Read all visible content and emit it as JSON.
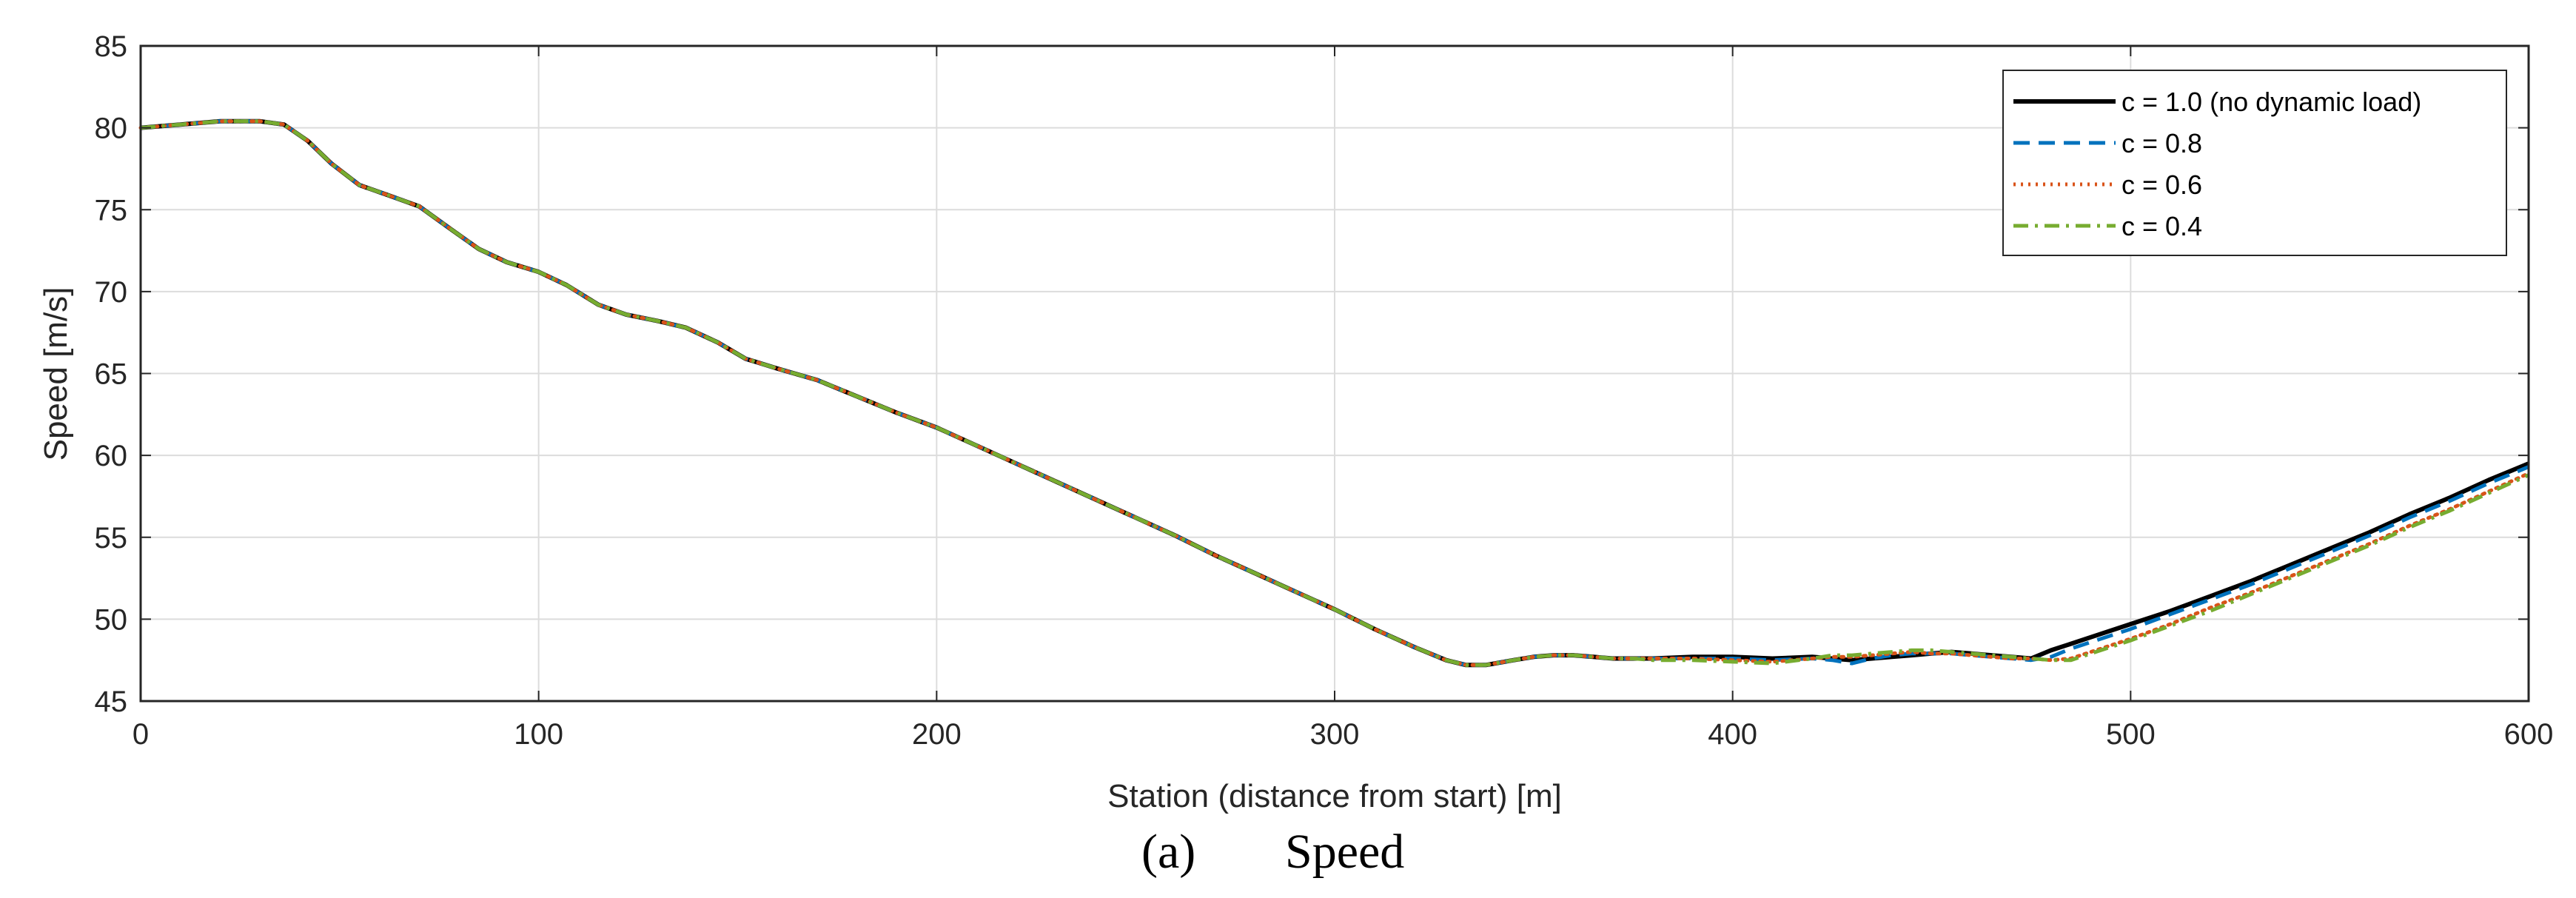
{
  "chart_data": {
    "type": "line",
    "title": "",
    "xlabel": "Station (distance from start) [m]",
    "ylabel": "Speed [m/s]",
    "xlim": [
      0,
      600
    ],
    "ylim": [
      45,
      85
    ],
    "xticks": [
      0,
      100,
      200,
      300,
      400,
      500,
      600
    ],
    "yticks": [
      45,
      50,
      55,
      60,
      65,
      70,
      75,
      80,
      85
    ],
    "grid": true,
    "legend_position": "top-right",
    "x": [
      0,
      10,
      20,
      30,
      36,
      42,
      48,
      55,
      62,
      70,
      78,
      85,
      92,
      100,
      107,
      115,
      122,
      130,
      137,
      145,
      152,
      160,
      170,
      180,
      190,
      200,
      210,
      220,
      230,
      240,
      250,
      260,
      270,
      280,
      290,
      300,
      310,
      320,
      328,
      333,
      338,
      345,
      350,
      355,
      360,
      365,
      370,
      375,
      380,
      390,
      400,
      410,
      420,
      425,
      430,
      435,
      440,
      445,
      450,
      455,
      460,
      465,
      470,
      475,
      480,
      485,
      490,
      500,
      510,
      520,
      530,
      540,
      550,
      560,
      570,
      580,
      590,
      600
    ],
    "series": [
      {
        "name": "c = 1.0 (no dynamic load)",
        "color": "#000000",
        "dash": "solid",
        "values": [
          80.0,
          80.2,
          80.4,
          80.4,
          80.2,
          79.2,
          77.8,
          76.5,
          75.9,
          75.2,
          73.8,
          72.6,
          71.8,
          71.2,
          70.4,
          69.2,
          68.6,
          68.2,
          67.8,
          66.9,
          65.9,
          65.3,
          64.6,
          63.6,
          62.6,
          61.7,
          60.6,
          59.5,
          58.4,
          57.3,
          56.2,
          55.1,
          53.9,
          52.8,
          51.7,
          50.6,
          49.4,
          48.3,
          47.5,
          47.2,
          47.2,
          47.5,
          47.7,
          47.8,
          47.8,
          47.7,
          47.6,
          47.6,
          47.6,
          47.7,
          47.7,
          47.6,
          47.7,
          47.6,
          47.5,
          47.6,
          47.7,
          47.8,
          47.9,
          48.0,
          47.9,
          47.8,
          47.7,
          47.6,
          48.1,
          48.5,
          48.9,
          49.7,
          50.5,
          51.4,
          52.3,
          53.3,
          54.3,
          55.3,
          56.4,
          57.4,
          58.5,
          59.5
        ]
      },
      {
        "name": "c = 0.8",
        "color": "#0072BD",
        "dash": "dashed",
        "values": [
          80.0,
          80.2,
          80.4,
          80.4,
          80.2,
          79.2,
          77.8,
          76.5,
          75.9,
          75.2,
          73.8,
          72.6,
          71.8,
          71.2,
          70.4,
          69.2,
          68.6,
          68.2,
          67.8,
          66.9,
          65.9,
          65.3,
          64.6,
          63.6,
          62.6,
          61.7,
          60.6,
          59.5,
          58.4,
          57.3,
          56.2,
          55.1,
          53.9,
          52.8,
          51.7,
          50.6,
          49.4,
          48.3,
          47.5,
          47.2,
          47.2,
          47.5,
          47.7,
          47.8,
          47.8,
          47.7,
          47.6,
          47.6,
          47.6,
          47.6,
          47.6,
          47.5,
          47.6,
          47.5,
          47.3,
          47.6,
          47.8,
          47.9,
          47.9,
          47.9,
          47.8,
          47.7,
          47.6,
          47.5,
          47.7,
          48.2,
          48.6,
          49.4,
          50.3,
          51.2,
          52.1,
          53.1,
          54.1,
          55.1,
          56.2,
          57.2,
          58.3,
          59.3
        ]
      },
      {
        "name": "c = 0.6",
        "color": "#D95319",
        "dash": "dotted",
        "values": [
          80.0,
          80.2,
          80.4,
          80.4,
          80.2,
          79.2,
          77.8,
          76.5,
          75.9,
          75.2,
          73.8,
          72.6,
          71.8,
          71.2,
          70.4,
          69.2,
          68.6,
          68.2,
          67.8,
          66.9,
          65.9,
          65.3,
          64.6,
          63.6,
          62.6,
          61.7,
          60.6,
          59.5,
          58.4,
          57.3,
          56.2,
          55.1,
          53.9,
          52.8,
          51.7,
          50.6,
          49.4,
          48.3,
          47.5,
          47.2,
          47.2,
          47.5,
          47.7,
          47.8,
          47.8,
          47.7,
          47.6,
          47.6,
          47.6,
          47.6,
          47.5,
          47.4,
          47.6,
          47.7,
          47.7,
          47.8,
          47.9,
          48.0,
          47.9,
          47.9,
          47.8,
          47.7,
          47.6,
          47.6,
          47.5,
          47.6,
          48.0,
          48.8,
          49.7,
          50.7,
          51.6,
          52.6,
          53.6,
          54.6,
          55.7,
          56.7,
          57.8,
          58.9
        ]
      },
      {
        "name": "c = 0.4",
        "color": "#77AC30",
        "dash": "dashdot",
        "values": [
          80.0,
          80.2,
          80.4,
          80.4,
          80.2,
          79.2,
          77.8,
          76.5,
          75.9,
          75.2,
          73.8,
          72.6,
          71.8,
          71.2,
          70.4,
          69.2,
          68.6,
          68.2,
          67.8,
          66.9,
          65.9,
          65.3,
          64.6,
          63.6,
          62.6,
          61.7,
          60.6,
          59.5,
          58.4,
          57.3,
          56.2,
          55.1,
          53.9,
          52.8,
          51.7,
          50.6,
          49.4,
          48.3,
          47.5,
          47.2,
          47.2,
          47.5,
          47.7,
          47.8,
          47.8,
          47.7,
          47.6,
          47.6,
          47.5,
          47.5,
          47.4,
          47.3,
          47.6,
          47.8,
          47.8,
          47.9,
          48.0,
          48.1,
          48.1,
          48.0,
          47.9,
          47.8,
          47.7,
          47.6,
          47.5,
          47.5,
          47.9,
          48.7,
          49.6,
          50.5,
          51.5,
          52.5,
          53.5,
          54.5,
          55.6,
          56.6,
          57.7,
          58.8
        ]
      }
    ]
  },
  "caption": {
    "label": "(a)",
    "text": "Speed"
  }
}
